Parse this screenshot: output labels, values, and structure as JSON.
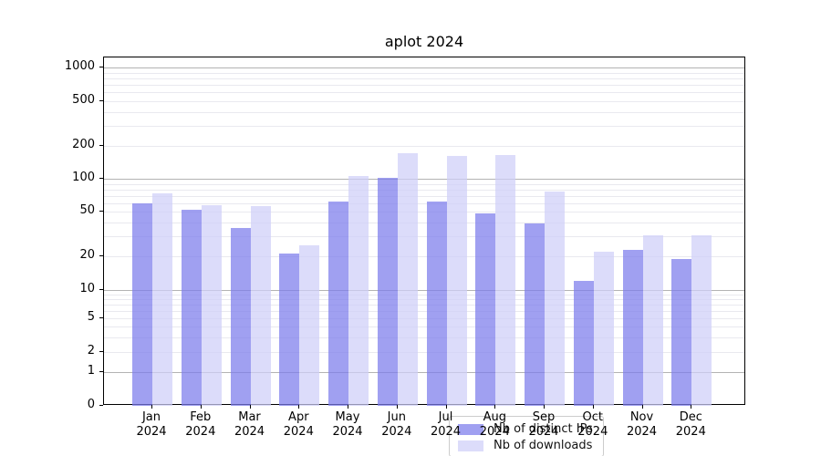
{
  "figure": {
    "background": "#ffffff"
  },
  "chart_data": {
    "type": "bar",
    "title": "aplot 2024",
    "categories": [
      "Jan",
      "Feb",
      "Mar",
      "Apr",
      "May",
      "Jun",
      "Jul",
      "Aug",
      "Sep",
      "Oct",
      "Nov",
      "Dec"
    ],
    "x_year_label": "2024",
    "series": [
      {
        "name": "Nb of distinct IPs",
        "color": "rgba(124,124,235,0.72)",
        "values": [
          59,
          52,
          36,
          21,
          62,
          103,
          62,
          48,
          39,
          12,
          23,
          19
        ]
      },
      {
        "name": "Nb of downloads",
        "color": "rgba(206,206,248,0.72)",
        "values": [
          74,
          57,
          56,
          25,
          107,
          172,
          161,
          166,
          76,
          22,
          31,
          31
        ]
      }
    ],
    "y_axis": {
      "scale": "log-like-with-zero",
      "tick_values": [
        0,
        1,
        2,
        5,
        10,
        20,
        50,
        100,
        200,
        500,
        1000
      ],
      "range": [
        0,
        1200
      ]
    },
    "legend": {
      "position": "lower center"
    },
    "grid": {
      "major_color": "#b3b3b3",
      "minor_color": "#e9e9ef",
      "enabled": true
    }
  }
}
